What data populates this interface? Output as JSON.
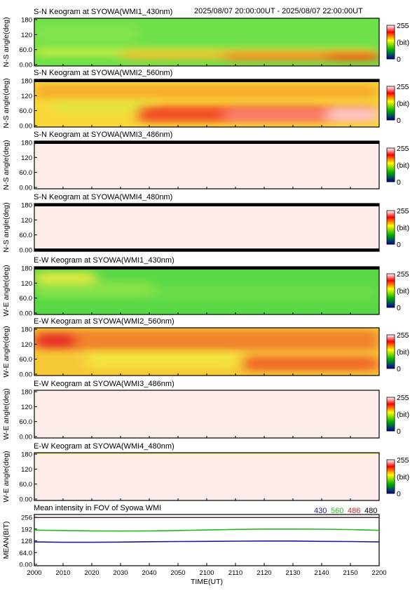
{
  "header": {
    "time_range": "2025/08/07 20:00:00UT - 2025/08/07 22:00:00UT"
  },
  "colors": {
    "frame": "#000000",
    "pale_panel": "#fdecea",
    "wl_430": "#1a1aa0",
    "wl_560": "#22bb22",
    "wl_486": "#cc2222",
    "wl_480": "#000000"
  },
  "colorbar": {
    "max_label": "255",
    "unit_label": "(bit)",
    "min_label": "0",
    "max_value": 255,
    "min_value": 0,
    "scale": "blue-green-yellow-red-white"
  },
  "chart_data": [
    {
      "type": "heatmap",
      "title": "S-N Keogram at SYOWA(WMI1_430nm)",
      "ylabel": "N-S angle(deg)",
      "yticks": [
        "180",
        "120",
        "60.0",
        "0.00"
      ],
      "ylim": [
        0,
        180
      ],
      "xlim": [
        2000,
        2200
      ],
      "pattern": "green background with a yellow-orange band near 20-60 deg strengthening after 2050",
      "top_black_bar": false,
      "bottom_black_bar": false
    },
    {
      "type": "heatmap",
      "title": "S-N Keogram at SYOWA(WMI2_560nm)",
      "ylabel": "N-S angle(deg)",
      "yticks": [
        "180",
        "120",
        "60.0",
        "0.00"
      ],
      "ylim": [
        0,
        180
      ],
      "xlim": [
        2000,
        2200
      ],
      "pattern": "yellow-orange with an intense red band near 30-60 deg after 2040",
      "top_black_bar": true,
      "bottom_black_bar": false
    },
    {
      "type": "heatmap",
      "title": "S-N Keogram at SYOWA(WMI3_486nm)",
      "ylabel": "N-S angle(deg)",
      "yticks": [
        "180",
        "120",
        "60.0",
        "0.00"
      ],
      "ylim": [
        0,
        180
      ],
      "xlim": [
        2000,
        2200
      ],
      "pattern": "uniform pale pink (saturated)",
      "top_black_bar": true,
      "bottom_black_bar": false
    },
    {
      "type": "heatmap",
      "title": "S-N Keogram at SYOWA(WMI4_480nm)",
      "ylabel": "N-S angle(deg)",
      "yticks": [
        "180",
        "120",
        "60.0",
        "0.00"
      ],
      "ylim": [
        0,
        180
      ],
      "xlim": [
        2000,
        2200
      ],
      "pattern": "uniform pale pink (saturated)",
      "top_black_bar": true,
      "bottom_black_bar": true
    },
    {
      "type": "heatmap",
      "title": "E-W Keogram at SYOWA(WMI1_430nm)",
      "ylabel": "W-E angle(deg)",
      "yticks": [
        "180",
        "120",
        "60.0",
        "0.00"
      ],
      "ylim": [
        0,
        180
      ],
      "xlim": [
        2000,
        2200
      ],
      "pattern": "green with a yellow patch near 120-150 deg at 2000-2020",
      "top_black_bar": true,
      "bottom_black_bar": false
    },
    {
      "type": "heatmap",
      "title": "E-W Keogram at SYOWA(WMI2_560nm)",
      "ylabel": "W-E angle(deg)",
      "yticks": [
        "180",
        "120",
        "60.0",
        "0.00"
      ],
      "ylim": [
        0,
        180
      ],
      "xlim": [
        2000,
        2200
      ],
      "pattern": "orange-red upper half, yellow lower half, red lower band after 2130",
      "top_black_bar": false,
      "bottom_black_bar": false
    },
    {
      "type": "heatmap",
      "title": "E-W Keogram at SYOWA(WMI3_486nm)",
      "ylabel": "W-E angle(deg)",
      "yticks": [
        "180",
        "120",
        "60.0",
        "0.00"
      ],
      "ylim": [
        0,
        180
      ],
      "xlim": [
        2000,
        2200
      ],
      "pattern": "uniform pale pink (saturated)",
      "top_black_bar": false,
      "bottom_black_bar": false
    },
    {
      "type": "heatmap",
      "title": "E-W Keogram at SYOWA(WMI4_480nm)",
      "ylabel": "W-E angle(deg)",
      "yticks": [
        "180",
        "120",
        "60.0",
        "0.00"
      ],
      "ylim": [
        0,
        180
      ],
      "xlim": [
        2000,
        2200
      ],
      "pattern": "uniform pale pink with thin yellow edge at top",
      "top_black_bar": false,
      "bottom_black_bar": false
    },
    {
      "type": "line",
      "title": "Mean intensity in FOV of Syowa WMI",
      "ylabel": "MEAN(BIT)",
      "xlabel": "TIME(UT)",
      "yticks": [
        "256",
        "192",
        "128",
        "64.0",
        "0.00"
      ],
      "ylim": [
        0,
        256
      ],
      "xlim": [
        2000,
        2200
      ],
      "xticks": [
        "2000",
        "2010",
        "2020",
        "2030",
        "2040",
        "2050",
        "2100",
        "2110",
        "2120",
        "2130",
        "2140",
        "2150",
        "2200"
      ],
      "x": [
        2000,
        2010,
        2020,
        2030,
        2040,
        2050,
        2100,
        2110,
        2120,
        2130,
        2140,
        2150,
        2200
      ],
      "series": [
        {
          "name": "430",
          "color": "#1a1aa0",
          "values": [
            122,
            120,
            120,
            121,
            123,
            124,
            125,
            126,
            127,
            127,
            125,
            124,
            122
          ]
        },
        {
          "name": "560",
          "color": "#22bb22",
          "values": [
            186,
            184,
            182,
            181,
            182,
            184,
            187,
            190,
            192,
            192,
            191,
            189,
            185
          ]
        },
        {
          "name": "486",
          "color": "#cc2222",
          "values": [
            255,
            255,
            255,
            255,
            255,
            255,
            255,
            255,
            255,
            255,
            255,
            255,
            255
          ]
        },
        {
          "name": "480",
          "color": "#000000",
          "values": [
            255,
            255,
            255,
            255,
            255,
            255,
            255,
            255,
            255,
            255,
            255,
            255,
            255
          ]
        }
      ]
    }
  ]
}
